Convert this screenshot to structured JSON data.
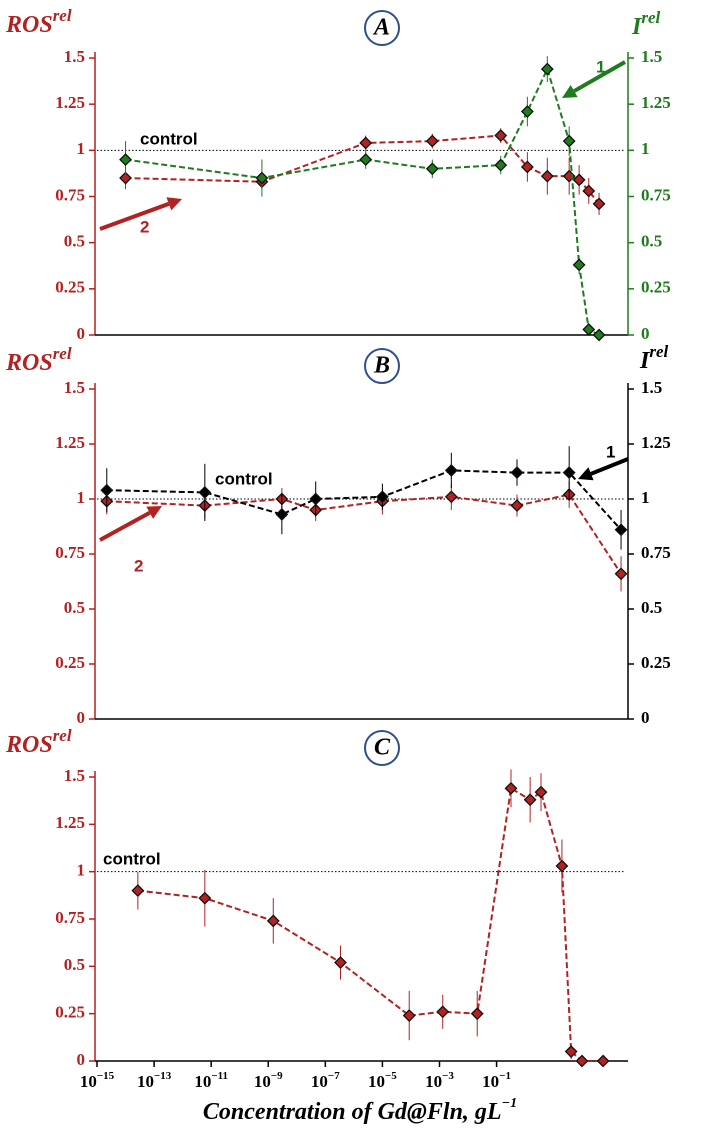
{
  "chart_data": [
    {
      "type": "line",
      "panel": "A",
      "xscale": "log",
      "xlim": [
        1e-15,
        3162
      ],
      "ylim": [
        0,
        1.5
      ],
      "yticks": [
        0,
        0.25,
        0.5,
        0.75,
        1,
        1.25,
        1.5
      ],
      "y2lim": [
        0,
        1.5
      ],
      "y2ticks": [
        0,
        0.25,
        0.5,
        0.75,
        1,
        1.25,
        1.5
      ],
      "ylabel": {
        "base": "ROS",
        "sup": "rel"
      },
      "y2label": {
        "base": "I",
        "sup": "rel"
      },
      "ycolor": "#b22222",
      "y2color": "#1e7b1e",
      "reference": {
        "label": "control",
        "value": 1
      },
      "series": [
        {
          "name": "2",
          "color": "#b22222",
          "x": [
            1e-14,
            6e-10,
            2.6e-06,
            0.00056,
            0.14,
            1.2,
            6,
            35,
            78,
            170,
            390
          ],
          "values": [
            0.85,
            0.83,
            1.04,
            1.05,
            1.08,
            0.91,
            0.86,
            0.86,
            0.84,
            0.78,
            0.71
          ],
          "errors": [
            0.06,
            0.04,
            0.04,
            0.04,
            0.04,
            0.08,
            0.1,
            0.1,
            0.08,
            0.07,
            0.06
          ]
        },
        {
          "name": "1",
          "color": "#1e7b1e",
          "axis": "y2",
          "x": [
            1e-14,
            6e-10,
            2.6e-06,
            0.00056,
            0.14,
            1.2,
            6,
            35,
            78,
            170,
            390
          ],
          "values": [
            0.95,
            0.85,
            0.95,
            0.9,
            0.92,
            1.21,
            1.44,
            1.05,
            0.38,
            0.03,
            0.0
          ],
          "errors": [
            0.1,
            0.1,
            0.05,
            0.05,
            0.05,
            0.08,
            0.07,
            0.08,
            0.05,
            0.02,
            0.02
          ]
        }
      ]
    },
    {
      "type": "line",
      "panel": "B",
      "xscale": "log",
      "xlim": [
        1e-15,
        3162
      ],
      "ylim": [
        0,
        1.5
      ],
      "yticks": [
        0,
        0.25,
        0.5,
        0.75,
        1,
        1.25,
        1.5
      ],
      "y2lim": [
        0,
        1.5
      ],
      "y2ticks": [
        0,
        0.25,
        0.5,
        0.75,
        1,
        1.25,
        1.5
      ],
      "ylabel": {
        "base": "ROS",
        "sup": "rel"
      },
      "y2label": {
        "base": "I",
        "sup": "rel"
      },
      "ycolor": "#b22222",
      "y2color": "#000000",
      "reference": {
        "label": "control",
        "value": 1
      },
      "series": [
        {
          "name": "2",
          "color": "#b22222",
          "x": [
            2.2e-15,
            6e-12,
            3e-09,
            4.6e-08,
            1e-05,
            0.0026,
            0.52,
            35,
            2300
          ],
          "values": [
            0.99,
            0.97,
            1.0,
            0.95,
            0.99,
            1.01,
            0.97,
            1.02,
            0.66
          ],
          "errors": [
            0.06,
            0.06,
            0.05,
            0.05,
            0.06,
            0.06,
            0.05,
            0.06,
            0.08
          ]
        },
        {
          "name": "1",
          "color": "#000000",
          "axis": "y2",
          "x": [
            2.2e-15,
            6e-12,
            3e-09,
            4.6e-08,
            1e-05,
            0.0026,
            0.52,
            35,
            2300
          ],
          "values": [
            1.04,
            1.03,
            0.93,
            1.0,
            1.01,
            1.13,
            1.12,
            1.12,
            0.86
          ],
          "errors": [
            0.1,
            0.13,
            0.09,
            0.08,
            0.06,
            0.08,
            0.06,
            0.12,
            0.09
          ]
        }
      ]
    },
    {
      "type": "line",
      "panel": "C",
      "xscale": "log",
      "xlim": [
        1e-15,
        3162
      ],
      "xticks": [
        {
          "value": 1e-15,
          "label": "10−15"
        },
        {
          "value": 1e-13,
          "label": "10−13"
        },
        {
          "value": 1e-11,
          "label": "10−11"
        },
        {
          "value": 1e-09,
          "label": "10−9"
        },
        {
          "value": 1e-07,
          "label": "10−7"
        },
        {
          "value": 1e-05,
          "label": "10−5"
        },
        {
          "value": 0.001,
          "label": "10−3"
        },
        {
          "value": 0.1,
          "label": "10−1"
        }
      ],
      "xlabel": {
        "base": "Concentration of Gd@Fln, gL",
        "sup": "−1"
      },
      "ylim": [
        0,
        1.5
      ],
      "yticks": [
        0,
        0.25,
        0.5,
        0.75,
        1,
        1.25,
        1.5
      ],
      "ylabel": {
        "base": "ROS",
        "sup": "rel"
      },
      "ycolor": "#b22222",
      "reference": {
        "label": "control",
        "value": 1
      },
      "series": [
        {
          "color": "#b22222",
          "x": [
            2.7e-14,
            6e-12,
            1.5e-09,
            3.4e-07,
            8.7e-05,
            0.0013,
            0.021,
            0.32,
            1.5,
            3.6,
            19.5,
            41,
            98,
            540
          ],
          "values": [
            0.9,
            0.86,
            0.74,
            0.52,
            0.24,
            0.26,
            0.25,
            1.44,
            1.38,
            1.42,
            1.03,
            0.05,
            0.0,
            0.0
          ],
          "errors": [
            0.1,
            0.15,
            0.12,
            0.09,
            0.13,
            0.09,
            0.12,
            0.1,
            0.12,
            0.1,
            0.14,
            0.04,
            0.03,
            0.03
          ]
        }
      ]
    }
  ]
}
